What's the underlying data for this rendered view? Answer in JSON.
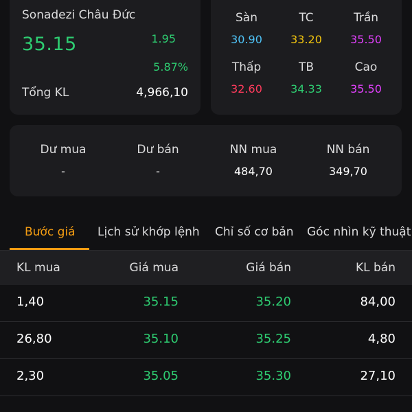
{
  "summary": {
    "name": "Sonadezi Châu Đức",
    "price": "35.15",
    "change": "1.95",
    "change_pct": "5.87%",
    "volume_label": "Tổng KL",
    "volume_value": "4,966,10"
  },
  "price_ref": {
    "san_label": "Sàn",
    "san_value": "30.90",
    "tc_label": "TC",
    "tc_value": "33.20",
    "tran_label": "Trần",
    "tran_value": "35.50",
    "thap_label": "Thấp",
    "thap_value": "32.60",
    "tb_label": "TB",
    "tb_value": "34.33",
    "cao_label": "Cao",
    "cao_value": "35.50",
    "colors": {
      "san": "#4fc3f7",
      "tc": "#f1c40f",
      "tran": "#e040fb",
      "thap": "#ff3b5c",
      "tb": "#2ecc71",
      "cao": "#e040fb"
    }
  },
  "orders": {
    "du_mua_label": "Dư mua",
    "du_mua_value": "-",
    "du_ban_label": "Dư bán",
    "du_ban_value": "-",
    "nn_mua_label": "NN mua",
    "nn_mua_value": "484,70",
    "nn_ban_label": "NN bán",
    "nn_ban_value": "349,70"
  },
  "tabs": [
    {
      "label": "Bước giá"
    },
    {
      "label": "Lịch sử khớp lệnh"
    },
    {
      "label": "Chỉ số cơ bản"
    },
    {
      "label": "Góc nhìn kỹ thuật"
    }
  ],
  "active_tab_color": "#f39c12",
  "table": {
    "headers": [
      "KL mua",
      "Giá mua",
      "Giá bán",
      "KL bán"
    ],
    "rows": [
      [
        "1,40",
        "35.15",
        "35.20",
        "84,00"
      ],
      [
        "26,80",
        "35.10",
        "35.25",
        "4,80"
      ],
      [
        "2,30",
        "35.05",
        "35.30",
        "27,10"
      ]
    ]
  }
}
